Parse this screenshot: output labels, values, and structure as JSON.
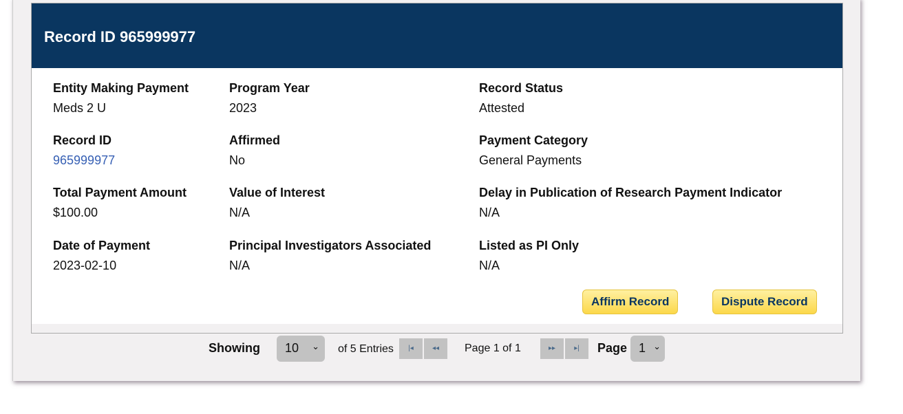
{
  "header": {
    "title": "Record ID 965999977"
  },
  "fields": [
    {
      "label": "Entity Making Payment",
      "value": "Meds 2 U"
    },
    {
      "label": "Program Year",
      "value": "2023"
    },
    {
      "label": "Record Status",
      "value": "Attested"
    },
    {
      "label": "Record ID",
      "value": "965999977"
    },
    {
      "label": "Affirmed",
      "value": "No"
    },
    {
      "label": "Payment Category",
      "value": "General Payments"
    },
    {
      "label": "Total Payment Amount",
      "value": "$100.00"
    },
    {
      "label": "Value of Interest",
      "value": "N/A"
    },
    {
      "label": "Delay in Publication of Research Payment Indicator",
      "value": "N/A"
    },
    {
      "label": "Date of Payment",
      "value": "2023-02-10"
    },
    {
      "label": "Principal Investigators Associated",
      "value": "N/A"
    },
    {
      "label": "Listed as PI Only",
      "value": "N/A"
    }
  ],
  "actions": {
    "affirm": "Affirm Record",
    "dispute": "Dispute Record"
  },
  "pagination": {
    "showing_label": "Showing",
    "page_size": "10",
    "entries": "of 5 Entries",
    "page_info": "Page 1 of 1",
    "page_label": "Page",
    "page_value": "1",
    "first": "|◂",
    "prev": "◂◂",
    "next": "▸▸",
    "last": "▸|"
  },
  "colors": {
    "header": "#0a3660",
    "button": "#fcd84a",
    "link": "#3760b4"
  }
}
